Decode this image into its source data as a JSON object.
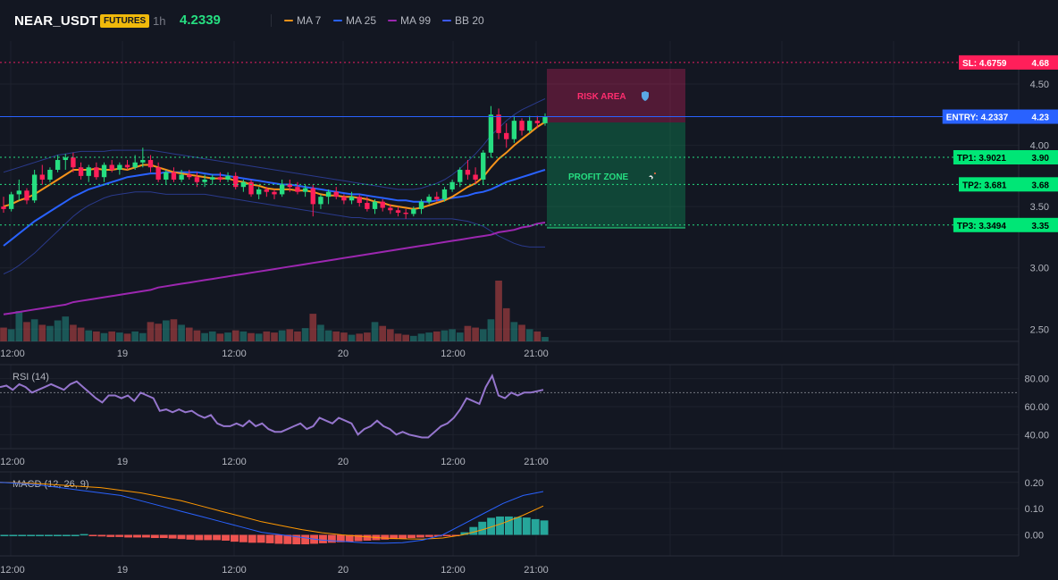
{
  "header": {
    "symbol": "NEAR_USDT",
    "badge": "FUTURES",
    "timeframe": "1h",
    "price": "4.2339",
    "legend": [
      {
        "name": "MA 7",
        "color": "#f7931a"
      },
      {
        "name": "MA 25",
        "color": "#2962ff"
      },
      {
        "name": "MA 99",
        "color": "#9c27b0"
      },
      {
        "name": "BB 20",
        "color": "#3d5afe"
      }
    ]
  },
  "zones": {
    "risk_label": "RISK AREA",
    "risk_icon": "shield-icon",
    "profit_label": "PROFIT ZONE",
    "profit_icon": "rocket-icon"
  },
  "levels": [
    {
      "label": "SL: 4.6759",
      "value": "4.68",
      "price": 4.6759,
      "color": "#ff1f5a",
      "text_color": "#ffffff",
      "line": "#e91e63"
    },
    {
      "label": "ENTRY: 4.2337",
      "value": "4.23",
      "price": 4.2337,
      "color": "#2962ff",
      "text_color": "#ffffff",
      "line": "#2962ff"
    },
    {
      "label": "TP1: 3.9021",
      "value": "3.90",
      "price": 3.9021,
      "color": "#00e676",
      "text_color": "#000000",
      "line": "#26de81"
    },
    {
      "label": "TP2: 3.681",
      "value": "3.68",
      "price": 3.681,
      "color": "#00e676",
      "text_color": "#000000",
      "line": "#26de81"
    },
    {
      "label": "TP3: 3.3494",
      "value": "3.35",
      "price": 3.3494,
      "color": "#00e676",
      "text_color": "#000000",
      "line": "#26de81"
    }
  ],
  "time_ticks": [
    "12:00",
    "19",
    "12:00",
    "20",
    "12:00",
    "21:00"
  ],
  "chart_data": [
    {
      "type": "candlestick",
      "ylim": [
        2.4,
        4.85
      ],
      "y_ticks": [
        "4.50",
        "4.00",
        "3.50",
        "3.00",
        "2.50"
      ],
      "y_tick_values": [
        4.5,
        4.0,
        3.5,
        3.0,
        2.5
      ],
      "candles": [
        [
          3.5,
          3.58,
          3.45,
          3.48
        ],
        [
          3.48,
          3.62,
          3.46,
          3.6
        ],
        [
          3.6,
          3.72,
          3.55,
          3.63
        ],
        [
          3.63,
          3.65,
          3.52,
          3.55
        ],
        [
          3.55,
          3.8,
          3.53,
          3.76
        ],
        [
          3.76,
          3.84,
          3.68,
          3.72
        ],
        [
          3.72,
          3.82,
          3.7,
          3.8
        ],
        [
          3.8,
          3.92,
          3.78,
          3.88
        ],
        [
          3.88,
          3.93,
          3.8,
          3.9
        ],
        [
          3.9,
          3.94,
          3.78,
          3.82
        ],
        [
          3.82,
          3.86,
          3.72,
          3.75
        ],
        [
          3.75,
          3.84,
          3.7,
          3.82
        ],
        [
          3.82,
          3.86,
          3.72,
          3.74
        ],
        [
          3.74,
          3.86,
          3.7,
          3.84
        ],
        [
          3.84,
          3.88,
          3.78,
          3.8
        ],
        [
          3.8,
          3.86,
          3.76,
          3.84
        ],
        [
          3.84,
          3.88,
          3.8,
          3.82
        ],
        [
          3.82,
          3.92,
          3.8,
          3.86
        ],
        [
          3.86,
          3.98,
          3.82,
          3.88
        ],
        [
          3.88,
          3.92,
          3.78,
          3.82
        ],
        [
          3.82,
          3.86,
          3.7,
          3.72
        ],
        [
          3.72,
          3.8,
          3.68,
          3.78
        ],
        [
          3.78,
          3.82,
          3.7,
          3.72
        ],
        [
          3.72,
          3.8,
          3.7,
          3.76
        ],
        [
          3.76,
          3.8,
          3.72,
          3.74
        ],
        [
          3.74,
          3.78,
          3.66,
          3.7
        ],
        [
          3.7,
          3.76,
          3.66,
          3.72
        ],
        [
          3.72,
          3.76,
          3.68,
          3.74
        ],
        [
          3.74,
          3.78,
          3.7,
          3.72
        ],
        [
          3.72,
          3.78,
          3.7,
          3.75
        ],
        [
          3.75,
          3.78,
          3.64,
          3.66
        ],
        [
          3.66,
          3.72,
          3.62,
          3.7
        ],
        [
          3.7,
          3.72,
          3.58,
          3.6
        ],
        [
          3.6,
          3.66,
          3.56,
          3.64
        ],
        [
          3.64,
          3.66,
          3.58,
          3.62
        ],
        [
          3.62,
          3.64,
          3.56,
          3.6
        ],
        [
          3.6,
          3.72,
          3.58,
          3.68
        ],
        [
          3.68,
          3.72,
          3.62,
          3.66
        ],
        [
          3.66,
          3.7,
          3.6,
          3.62
        ],
        [
          3.62,
          3.68,
          3.58,
          3.65
        ],
        [
          3.65,
          3.68,
          3.42,
          3.52
        ],
        [
          3.52,
          3.6,
          3.48,
          3.58
        ],
        [
          3.58,
          3.64,
          3.52,
          3.62
        ],
        [
          3.62,
          3.66,
          3.56,
          3.58
        ],
        [
          3.58,
          3.6,
          3.52,
          3.55
        ],
        [
          3.55,
          3.62,
          3.52,
          3.58
        ],
        [
          3.58,
          3.6,
          3.5,
          3.53
        ],
        [
          3.53,
          3.58,
          3.46,
          3.48
        ],
        [
          3.48,
          3.56,
          3.44,
          3.54
        ],
        [
          3.54,
          3.56,
          3.46,
          3.49
        ],
        [
          3.49,
          3.52,
          3.44,
          3.47
        ],
        [
          3.47,
          3.5,
          3.42,
          3.45
        ],
        [
          3.45,
          3.48,
          3.4,
          3.44
        ],
        [
          3.44,
          3.5,
          3.42,
          3.48
        ],
        [
          3.48,
          3.56,
          3.44,
          3.54
        ],
        [
          3.54,
          3.6,
          3.52,
          3.58
        ],
        [
          3.58,
          3.62,
          3.54,
          3.56
        ],
        [
          3.56,
          3.66,
          3.54,
          3.64
        ],
        [
          3.64,
          3.72,
          3.62,
          3.7
        ],
        [
          3.7,
          3.82,
          3.66,
          3.8
        ],
        [
          3.8,
          3.88,
          3.72,
          3.76
        ],
        [
          3.76,
          3.82,
          3.68,
          3.72
        ],
        [
          3.72,
          3.96,
          3.68,
          3.94
        ],
        [
          3.94,
          4.32,
          3.9,
          4.25
        ],
        [
          4.25,
          4.3,
          4.05,
          4.1
        ],
        [
          4.1,
          4.18,
          3.98,
          4.05
        ],
        [
          4.05,
          4.24,
          4.02,
          4.2
        ],
        [
          4.2,
          4.22,
          4.08,
          4.12
        ],
        [
          4.12,
          4.24,
          4.1,
          4.2
        ],
        [
          4.2,
          4.24,
          4.14,
          4.18
        ],
        [
          4.18,
          4.26,
          4.16,
          4.23
        ]
      ],
      "ma7": [
        3.5,
        3.52,
        3.55,
        3.57,
        3.6,
        3.64,
        3.68,
        3.72,
        3.76,
        3.8,
        3.8,
        3.8,
        3.81,
        3.8,
        3.8,
        3.81,
        3.8,
        3.82,
        3.84,
        3.84,
        3.82,
        3.8,
        3.78,
        3.77,
        3.76,
        3.75,
        3.74,
        3.73,
        3.73,
        3.73,
        3.71,
        3.7,
        3.68,
        3.67,
        3.65,
        3.64,
        3.64,
        3.64,
        3.63,
        3.63,
        3.62,
        3.6,
        3.59,
        3.59,
        3.58,
        3.58,
        3.57,
        3.56,
        3.54,
        3.53,
        3.51,
        3.5,
        3.49,
        3.48,
        3.49,
        3.51,
        3.53,
        3.55,
        3.58,
        3.62,
        3.66,
        3.69,
        3.74,
        3.82,
        3.89,
        3.94,
        4.0,
        4.05,
        4.1,
        4.15,
        4.19
      ],
      "ma25": [
        3.18,
        3.23,
        3.28,
        3.33,
        3.38,
        3.42,
        3.46,
        3.5,
        3.54,
        3.58,
        3.61,
        3.64,
        3.66,
        3.68,
        3.7,
        3.72,
        3.74,
        3.75,
        3.76,
        3.77,
        3.77,
        3.78,
        3.78,
        3.78,
        3.78,
        3.78,
        3.77,
        3.76,
        3.76,
        3.75,
        3.74,
        3.73,
        3.72,
        3.71,
        3.7,
        3.69,
        3.68,
        3.68,
        3.67,
        3.66,
        3.65,
        3.64,
        3.63,
        3.62,
        3.61,
        3.6,
        3.6,
        3.59,
        3.58,
        3.57,
        3.56,
        3.55,
        3.55,
        3.54,
        3.54,
        3.54,
        3.55,
        3.56,
        3.57,
        3.58,
        3.59,
        3.61,
        3.62,
        3.64,
        3.67,
        3.7,
        3.72,
        3.74,
        3.76,
        3.78,
        3.8
      ],
      "ma99": [
        2.62,
        2.63,
        2.64,
        2.65,
        2.66,
        2.67,
        2.68,
        2.69,
        2.7,
        2.72,
        2.73,
        2.74,
        2.75,
        2.76,
        2.77,
        2.78,
        2.79,
        2.8,
        2.81,
        2.82,
        2.84,
        2.85,
        2.86,
        2.87,
        2.88,
        2.89,
        2.9,
        2.91,
        2.92,
        2.93,
        2.94,
        2.95,
        2.96,
        2.97,
        2.98,
        2.99,
        3.0,
        3.01,
        3.02,
        3.03,
        3.04,
        3.05,
        3.06,
        3.07,
        3.08,
        3.09,
        3.1,
        3.11,
        3.12,
        3.13,
        3.14,
        3.15,
        3.16,
        3.17,
        3.18,
        3.19,
        3.2,
        3.21,
        3.22,
        3.23,
        3.24,
        3.25,
        3.26,
        3.27,
        3.29,
        3.3,
        3.31,
        3.33,
        3.34,
        3.36,
        3.37
      ],
      "bb_upper": [
        3.78,
        3.8,
        3.82,
        3.84,
        3.86,
        3.88,
        3.9,
        3.92,
        3.93,
        3.94,
        3.95,
        3.95,
        3.95,
        3.95,
        3.96,
        3.96,
        3.96,
        3.96,
        3.96,
        3.96,
        3.95,
        3.94,
        3.93,
        3.92,
        3.91,
        3.9,
        3.89,
        3.88,
        3.87,
        3.86,
        3.85,
        3.84,
        3.83,
        3.82,
        3.81,
        3.8,
        3.79,
        3.78,
        3.77,
        3.76,
        3.75,
        3.74,
        3.73,
        3.72,
        3.71,
        3.7,
        3.69,
        3.68,
        3.67,
        3.66,
        3.65,
        3.64,
        3.64,
        3.64,
        3.65,
        3.67,
        3.69,
        3.72,
        3.76,
        3.81,
        3.87,
        3.93,
        4.0,
        4.08,
        4.14,
        4.2,
        4.25,
        4.29,
        4.32,
        4.35,
        4.38
      ],
      "bb_lower": [
        2.95,
        2.98,
        3.02,
        3.07,
        3.12,
        3.18,
        3.24,
        3.3,
        3.36,
        3.42,
        3.47,
        3.51,
        3.54,
        3.57,
        3.59,
        3.6,
        3.61,
        3.62,
        3.62,
        3.62,
        3.61,
        3.6,
        3.6,
        3.6,
        3.6,
        3.6,
        3.6,
        3.59,
        3.58,
        3.57,
        3.56,
        3.55,
        3.54,
        3.53,
        3.52,
        3.51,
        3.5,
        3.49,
        3.48,
        3.47,
        3.46,
        3.45,
        3.44,
        3.43,
        3.42,
        3.41,
        3.41,
        3.4,
        3.4,
        3.4,
        3.4,
        3.4,
        3.4,
        3.4,
        3.4,
        3.4,
        3.4,
        3.4,
        3.4,
        3.39,
        3.38,
        3.36,
        3.34,
        3.3,
        3.26,
        3.23,
        3.2,
        3.18,
        3.17,
        3.17,
        3.17
      ],
      "volume": [
        25,
        22,
        55,
        35,
        40,
        30,
        28,
        38,
        45,
        30,
        25,
        20,
        18,
        15,
        18,
        16,
        14,
        18,
        15,
        35,
        32,
        38,
        40,
        30,
        25,
        20,
        15,
        18,
        14,
        16,
        20,
        18,
        15,
        14,
        18,
        16,
        20,
        22,
        18,
        24,
        50,
        30,
        20,
        18,
        16,
        12,
        14,
        16,
        35,
        28,
        22,
        14,
        12,
        10,
        14,
        16,
        18,
        20,
        22,
        16,
        28,
        25,
        22,
        40,
        110,
        60,
        35,
        30,
        22,
        18,
        8
      ]
    },
    {
      "type": "line",
      "title": "RSI (14)",
      "ylim": [
        30,
        90
      ],
      "y_ticks": [
        "80.00",
        "60.00",
        "40.00"
      ],
      "y_tick_values": [
        80,
        60,
        40
      ],
      "overbought": 70,
      "values": [
        74,
        75,
        72,
        76,
        74,
        70,
        72,
        74,
        76,
        74,
        72,
        76,
        78,
        74,
        70,
        66,
        63,
        68,
        68,
        66,
        68,
        64,
        70,
        68,
        66,
        57,
        58,
        56,
        58,
        56,
        57,
        54,
        52,
        54,
        48,
        46,
        46,
        48,
        46,
        50,
        46,
        48,
        44,
        42,
        42,
        44,
        46,
        48,
        44,
        46,
        52,
        50,
        48,
        52,
        50,
        48,
        40,
        44,
        46,
        50,
        46,
        44,
        40,
        42,
        40,
        39,
        38,
        38,
        42,
        46,
        48,
        52,
        58,
        66,
        64,
        62,
        74,
        82,
        68,
        66,
        70,
        68,
        70,
        70,
        71,
        72
      ]
    },
    {
      "type": "bar",
      "title": "MACD (12, 26, 9)",
      "ylim": [
        -0.08,
        0.24
      ],
      "y_ticks": [
        "0.20",
        "0.10",
        "0.00"
      ],
      "y_tick_values": [
        0.2,
        0.1,
        0.0
      ],
      "histogram": [
        0.0,
        0.0,
        0.0,
        0.0,
        0.0,
        0.0,
        0.0,
        0.0,
        0.0,
        0.003,
        -0.004,
        -0.006,
        -0.008,
        -0.008,
        -0.01,
        -0.01,
        -0.01,
        -0.012,
        -0.012,
        -0.014,
        -0.016,
        -0.018,
        -0.02,
        -0.02,
        -0.02,
        -0.022,
        -0.026,
        -0.028,
        -0.03,
        -0.03,
        -0.032,
        -0.034,
        -0.035,
        -0.036,
        -0.036,
        -0.034,
        -0.032,
        -0.03,
        -0.028,
        -0.026,
        -0.024,
        -0.022,
        -0.02,
        -0.018,
        -0.016,
        -0.014,
        -0.012,
        -0.01,
        -0.008,
        -0.006,
        -0.004,
        -0.003,
        0.01,
        0.03,
        0.05,
        0.065,
        0.07,
        0.07,
        0.068,
        0.066,
        0.06,
        0.055
      ],
      "macd": [
        0.2,
        0.196,
        0.19,
        0.18,
        0.17,
        0.16,
        0.15,
        0.13,
        0.11,
        0.09,
        0.07,
        0.05,
        0.03,
        0.01,
        0.0,
        -0.01,
        -0.02,
        -0.025,
        -0.03,
        -0.032,
        -0.03,
        -0.02,
        0.0,
        0.04,
        0.08,
        0.12,
        0.15,
        0.165
      ],
      "signal": [
        0.2,
        0.198,
        0.195,
        0.19,
        0.185,
        0.18,
        0.17,
        0.16,
        0.145,
        0.13,
        0.11,
        0.09,
        0.07,
        0.05,
        0.035,
        0.02,
        0.008,
        0.0,
        -0.006,
        -0.012,
        -0.015,
        -0.016,
        -0.012,
        0.0,
        0.02,
        0.045,
        0.075,
        0.11
      ]
    }
  ]
}
